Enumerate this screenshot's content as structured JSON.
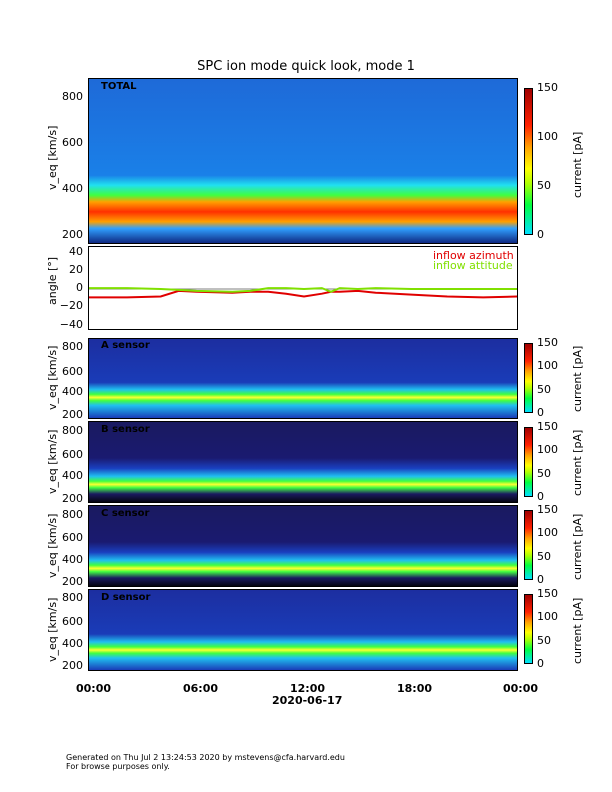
{
  "title": "SPC ion mode quick look, mode 1",
  "chart_data": [
    {
      "type": "heatmap",
      "label": "TOTAL",
      "ylabel": "v_eq [km/s]",
      "yticks": [
        "800",
        "600",
        "400",
        "200"
      ],
      "colorbar_label": "current [pA]",
      "colorbar_ticks": [
        "150",
        "100",
        "50",
        "0"
      ]
    },
    {
      "type": "line",
      "ylabel": "angle [°]",
      "yticks": [
        "40",
        "20",
        "0",
        "−20",
        "−40"
      ],
      "ylim": [
        -45,
        45
      ],
      "series": [
        {
          "name": "inflow azimuth",
          "color": "#e00000",
          "x": [
            0,
            2,
            4,
            5,
            6,
            8,
            9,
            10,
            11,
            12,
            13,
            13.5,
            14,
            15,
            16,
            18,
            20,
            22,
            24
          ],
          "y": [
            -9,
            -9,
            -8,
            -2,
            -3,
            -4,
            -3,
            -3,
            -5,
            -8,
            -5,
            -3,
            -3,
            -2,
            -4,
            -6,
            -8,
            -9,
            -8
          ]
        },
        {
          "name": "inflow attitude",
          "color": "#80e000",
          "x": [
            0,
            2,
            4,
            5,
            6,
            8,
            9,
            10,
            11,
            12,
            13,
            13.5,
            14,
            15,
            16,
            18,
            20,
            22,
            24
          ],
          "y": [
            1,
            1,
            0,
            -1,
            -2,
            -3,
            -2,
            1,
            1,
            0,
            1,
            -3,
            1,
            0,
            1,
            0,
            0,
            0,
            0
          ]
        }
      ]
    },
    {
      "type": "heatmap",
      "label": "A sensor",
      "ylabel": "v_eq [km/s]",
      "yticks": [
        "800",
        "600",
        "400",
        "200"
      ],
      "colorbar_label": "current [pA]",
      "colorbar_ticks": [
        "150",
        "100",
        "50",
        "0"
      ]
    },
    {
      "type": "heatmap",
      "label": "B sensor",
      "ylabel": "v_eq [km/s]",
      "yticks": [
        "800",
        "600",
        "400",
        "200"
      ],
      "colorbar_label": "current [pA]",
      "colorbar_ticks": [
        "150",
        "100",
        "50",
        "0"
      ]
    },
    {
      "type": "heatmap",
      "label": "C sensor",
      "ylabel": "v_eq [km/s]",
      "yticks": [
        "800",
        "600",
        "400",
        "200"
      ],
      "colorbar_label": "current [pA]",
      "colorbar_ticks": [
        "150",
        "100",
        "50",
        "0"
      ]
    },
    {
      "type": "heatmap",
      "label": "D sensor",
      "ylabel": "v_eq [km/s]",
      "yticks": [
        "800",
        "600",
        "400",
        "200"
      ],
      "colorbar_label": "current [pA]",
      "colorbar_ticks": [
        "150",
        "100",
        "50",
        "0"
      ]
    }
  ],
  "xaxis": {
    "ticks": [
      "00:00",
      "06:00",
      "12:00",
      "18:00",
      "00:00"
    ],
    "date": "2020-06-17"
  },
  "footer": {
    "line1": "Generated on Thu Jul  2 13:24:53 2020 by mstevens@cfa.harvard.edu",
    "line2": "For browse purposes only."
  }
}
